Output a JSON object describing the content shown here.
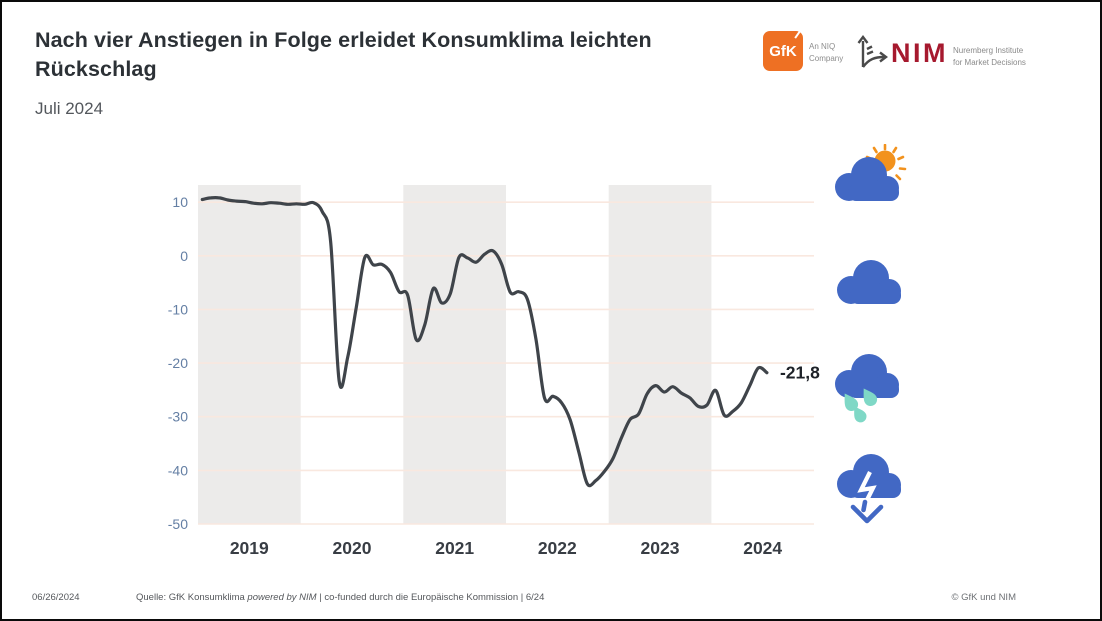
{
  "header": {
    "title": "Nach vier Anstiegen in Folge erleidet Konsumklima leichten Rückschlag",
    "subtitle": "Juli 2024"
  },
  "logos": {
    "gfk_label": "GfK",
    "niq_line1": "An NIQ",
    "niq_line2": "Company",
    "nim_label": "NIM",
    "nim_line1": "Nuremberg Institute",
    "nim_line2": "for Market Decisions"
  },
  "chart_data": {
    "type": "line",
    "title": "GfK Konsumklima",
    "x_unit": "month",
    "x_start": "2019-01",
    "x_end": "2024-07",
    "categories_years": [
      "2019",
      "2020",
      "2021",
      "2022",
      "2023",
      "2024"
    ],
    "shaded_year_indices": [
      0,
      2,
      4
    ],
    "series": [
      {
        "name": "Konsumklima",
        "monthly_values": [
          10.5,
          10.8,
          10.8,
          10.4,
          10.2,
          10.1,
          9.8,
          9.7,
          9.9,
          9.8,
          9.6,
          9.7,
          9.6,
          9.9,
          8.3,
          2.7,
          -23.4,
          -18.9,
          -9.6,
          -0.3,
          -1.7,
          -1.6,
          -3.1,
          -6.7,
          -7.3,
          -15.6,
          -12.9,
          -6.1,
          -8.8,
          -7.0,
          -0.3,
          -0.4,
          -1.2,
          0.3,
          0.9,
          -1.6,
          -6.8,
          -6.7,
          -8.1,
          -15.5,
          -26.5,
          -26.2,
          -27.4,
          -30.6,
          -36.5,
          -42.5,
          -41.9,
          -40.2,
          -37.8,
          -33.9,
          -30.5,
          -29.5,
          -25.7,
          -24.2,
          -25.4,
          -24.4,
          -25.6,
          -26.5,
          -28.1,
          -27.8,
          -25.1,
          -29.7,
          -29.0,
          -27.4,
          -24.2,
          -20.9,
          -21.8
        ]
      }
    ],
    "y_ticks": [
      10,
      0,
      -10,
      -20,
      -30,
      -40,
      -50
    ],
    "ylim": [
      -50,
      13.2
    ],
    "grid": "horizontal",
    "legend": "none",
    "end_label": "-21,8",
    "end_value": -21.8
  },
  "icons": {
    "scale": [
      "sun-cloud",
      "cloud",
      "rain-cloud",
      "cloud-down-arrow"
    ]
  },
  "footer": {
    "date": "06/26/2024",
    "source_prefix": "Quelle: GfK Konsumklima ",
    "source_italic": "powered by NIM",
    "source_suffix": " | co-funded durch die Europäische Kommission | 6/24",
    "copyright": "© GfK und NIM"
  },
  "colors": {
    "line": "#3f444a",
    "band": "#ecebea",
    "gridline": "#f9e8df",
    "y_tick": "#647fa4",
    "x_tick": "#383d44",
    "cloud_blue": "#4268c4",
    "sun_orange": "#f2921d",
    "drop_teal": "#7fd8c6",
    "gfk_orange": "#ee7023",
    "nim_red": "#a6192e",
    "arrow_gray": "#4a4a4a"
  }
}
